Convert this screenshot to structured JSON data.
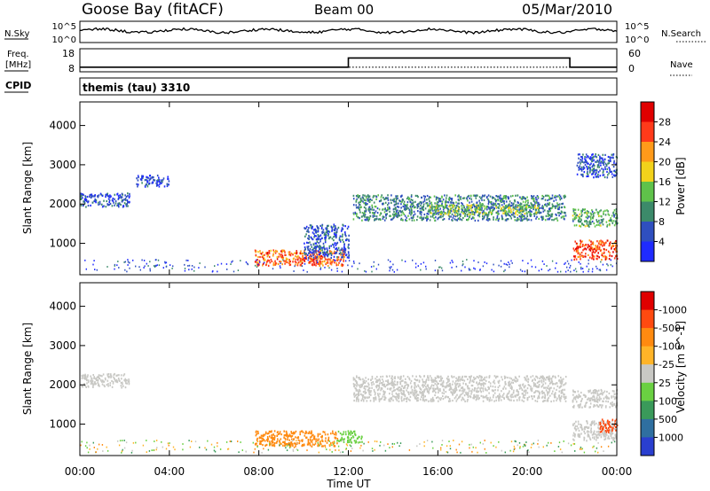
{
  "header": {
    "station": "Goose Bay (fitACF)",
    "beam": "Beam 00",
    "date": "05/Mar/2010"
  },
  "top_panels": {
    "noise_label_left": "N.Sky",
    "noise_label_right": "N.Search",
    "noise_ticks_left": [
      "10^5",
      "10^0"
    ],
    "noise_ticks_right": [
      "10^5",
      "10^0"
    ],
    "freq_label": "Freq.",
    "freq_unit": "[MHz]",
    "freq_ticks": [
      "18",
      "8"
    ],
    "nave_label": "Nave",
    "nave_ticks": [
      "60",
      "0"
    ],
    "cpid_label": "CPID",
    "cpid_text": "themis (tau) 3310"
  },
  "x_axis": {
    "title": "Time UT",
    "ticks": [
      "00:00",
      "04:00",
      "08:00",
      "12:00",
      "16:00",
      "20:00",
      "00:00"
    ]
  },
  "y_axis": {
    "title": "Slant Range [km]",
    "ticks": [
      "1000",
      "2000",
      "3000",
      "4000"
    ]
  },
  "power_colorbar": {
    "title": "Power [dB]",
    "ticks": [
      "4",
      "8",
      "12",
      "16",
      "20",
      "24",
      "28"
    ],
    "colors": [
      "#1f2bff",
      "#2f4fbf",
      "#3c8a6a",
      "#5fc24a",
      "#f2d21b",
      "#ff9a1a",
      "#ff3a1a",
      "#e00000"
    ]
  },
  "velocity_colorbar": {
    "title": "Velocity [m s^-1]",
    "ticks": [
      "1000",
      "500",
      "100",
      "25",
      "-25",
      "-100",
      "-500",
      "-1000"
    ],
    "colors": [
      "#2a3fcf",
      "#2f6fa0",
      "#3a9a5a",
      "#6ad042",
      "#c8c8c4",
      "#ffb428",
      "#ff8a10",
      "#ff4a10",
      "#e00000"
    ]
  },
  "chart_data": [
    {
      "type": "heatmap",
      "title": "Power [dB]",
      "xlabel": "Time UT",
      "ylabel": "Slant Range [km]",
      "xlim": [
        0,
        24
      ],
      "ylim": [
        200,
        4600
      ],
      "zlim": [
        0,
        32
      ],
      "features": [
        {
          "t0": 0.0,
          "t1": 2.2,
          "r0": 1950,
          "r1": 2300,
          "power": 6
        },
        {
          "t0": 2.5,
          "t1": 4.0,
          "r0": 2450,
          "r1": 2750,
          "power": 5
        },
        {
          "t0": 7.8,
          "t1": 11.8,
          "r0": 450,
          "r1": 850,
          "power": 24
        },
        {
          "t0": 9.8,
          "t1": 10.8,
          "r0": 500,
          "r1": 650,
          "power": 28
        },
        {
          "t0": 10.0,
          "t1": 12.0,
          "r0": 650,
          "r1": 1500,
          "power": 6
        },
        {
          "t0": 12.2,
          "t1": 21.7,
          "r0": 1600,
          "r1": 2250,
          "power": 9
        },
        {
          "t0": 15.5,
          "t1": 20.5,
          "r0": 1750,
          "r1": 2000,
          "power": 14
        },
        {
          "t0": 22.0,
          "t1": 24.0,
          "r0": 600,
          "r1": 1100,
          "power": 26
        },
        {
          "t0": 22.0,
          "t1": 24.0,
          "r0": 1450,
          "r1": 1900,
          "power": 12
        },
        {
          "t0": 22.2,
          "t1": 24.0,
          "r0": 2700,
          "r1": 3300,
          "power": 6
        }
      ]
    },
    {
      "type": "heatmap",
      "title": "Velocity [m s^-1]",
      "xlabel": "Time UT",
      "ylabel": "Slant Range [km]",
      "xlim": [
        0,
        24
      ],
      "ylim": [
        200,
        4600
      ],
      "features": [
        {
          "t0": 0.0,
          "t1": 2.2,
          "r0": 1950,
          "r1": 2300,
          "velocity": 0
        },
        {
          "t0": 7.8,
          "t1": 11.5,
          "r0": 450,
          "r1": 850,
          "velocity": -150
        },
        {
          "t0": 11.5,
          "t1": 12.6,
          "r0": 550,
          "r1": 850,
          "velocity": 60
        },
        {
          "t0": 12.2,
          "t1": 21.7,
          "r0": 1600,
          "r1": 2250,
          "velocity": 0
        },
        {
          "t0": 22.0,
          "t1": 24.0,
          "r0": 600,
          "r1": 1100,
          "velocity": 0
        },
        {
          "t0": 23.2,
          "t1": 24.0,
          "r0": 800,
          "r1": 1150,
          "velocity": -600
        },
        {
          "t0": 22.0,
          "t1": 24.0,
          "r0": 1450,
          "r1": 1900,
          "velocity": 0
        }
      ]
    }
  ],
  "freq_series": {
    "low_mhz": 10,
    "high_mhz": 14,
    "step_up_hour": 12.0,
    "step_down_hour": 21.9
  },
  "nave_series": {
    "value": 12
  }
}
